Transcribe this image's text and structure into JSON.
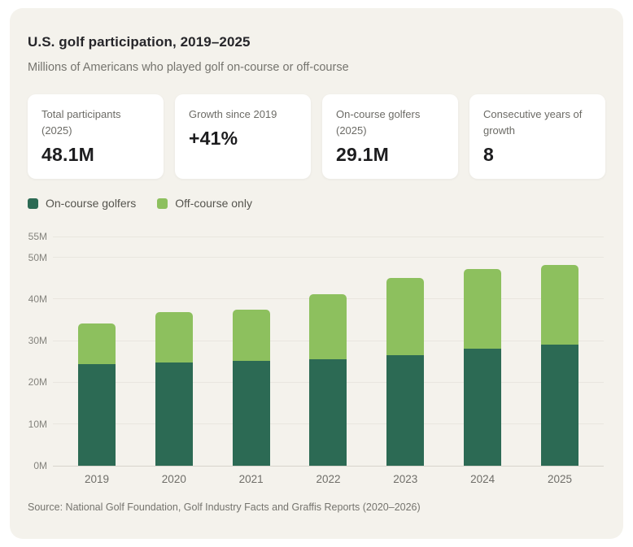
{
  "panel": {
    "title": "U.S. golf participation, 2019–2025",
    "subtitle": "Millions of Americans who played golf on-course or off-course",
    "source": "Source: National Golf Foundation, Golf Industry Facts and Graffis Reports (2020–2026)"
  },
  "stat_cards": [
    {
      "label": "Total participants (2025)",
      "value": "48.1M"
    },
    {
      "label": "Growth since 2019",
      "value": "+41%"
    },
    {
      "label": "On-course golfers (2025)",
      "value": "29.1M"
    },
    {
      "label": "Consecutive years of growth",
      "value": "8"
    }
  ],
  "legend": [
    {
      "label": "On-course golfers",
      "color": "#2C6A54"
    },
    {
      "label": "Off-course only",
      "color": "#8DC05E"
    }
  ],
  "colors": {
    "panel_background": "#F4F2EC",
    "page_background": "#FFFFFF",
    "card_background": "#FFFFFF",
    "on_course_green": "#2C6A54",
    "off_course_green": "#8DC05E",
    "gridline": "#E9E6DF"
  },
  "chart_data": {
    "type": "bar",
    "stacked": true,
    "title": "U.S. golf participation, 2019–2025",
    "subtitle": "Millions of Americans who played golf on-course or off-course",
    "categories": [
      "2019",
      "2020",
      "2021",
      "2022",
      "2023",
      "2024",
      "2025"
    ],
    "series": [
      {
        "name": "On-course golfers",
        "color": "#2C6A54",
        "values": [
          24.3,
          24.8,
          25.1,
          25.6,
          26.6,
          28.1,
          29.1
        ]
      },
      {
        "name": "Off-course only",
        "color": "#8DC05E",
        "values": [
          9.9,
          12.1,
          12.4,
          15.5,
          18.4,
          19.1,
          19.0
        ]
      }
    ],
    "totals": [
      34.2,
      36.9,
      37.5,
      41.1,
      45.0,
      47.2,
      48.1
    ],
    "xlabel": "",
    "ylabel": "",
    "ylim": [
      0,
      55
    ],
    "yticks": [
      0,
      10,
      20,
      30,
      40,
      50,
      55
    ],
    "ytick_suffix": "M",
    "grid": true,
    "legend_position": "top"
  }
}
